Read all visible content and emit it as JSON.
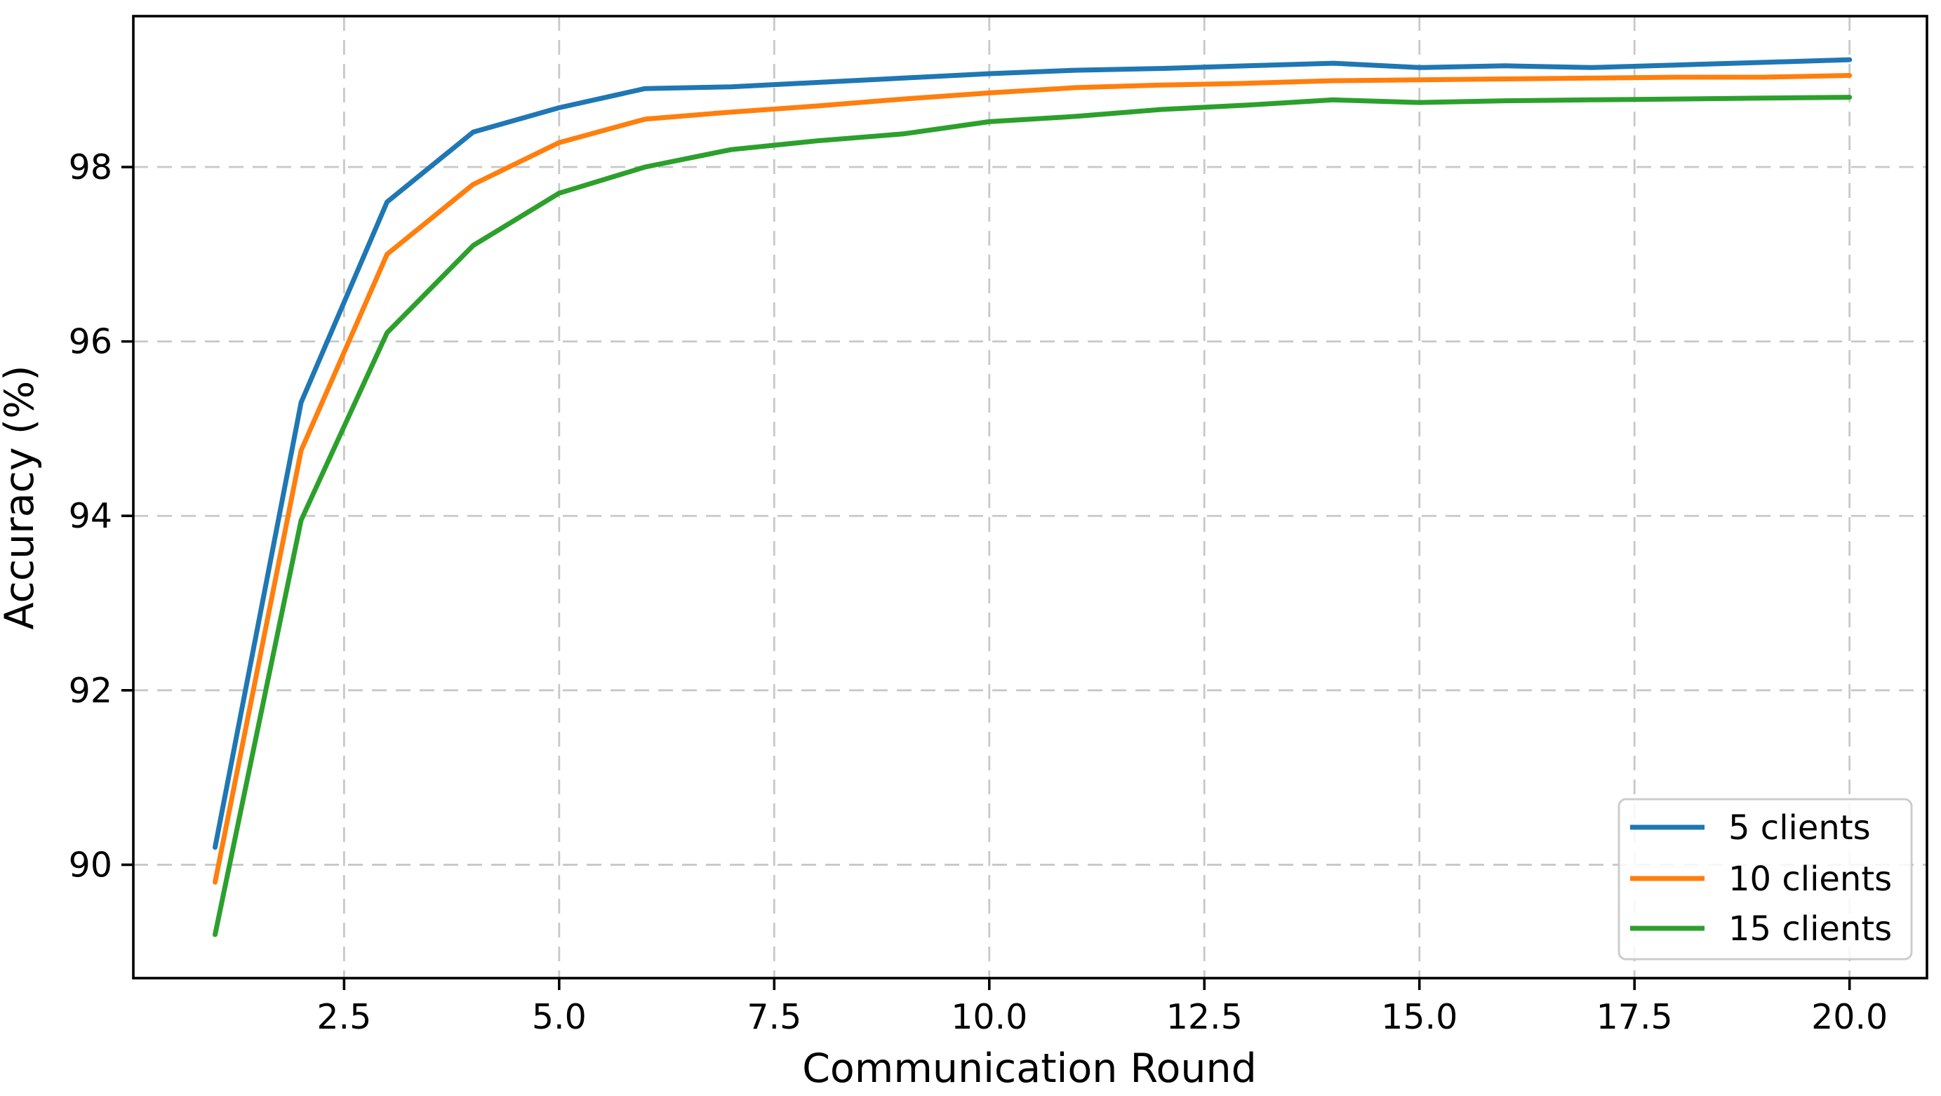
{
  "chart_data": {
    "type": "line",
    "title": "",
    "xlabel": "Communication Round",
    "ylabel": "Accuracy (%)",
    "x": [
      1,
      2,
      3,
      4,
      5,
      6,
      7,
      8,
      9,
      10,
      11,
      12,
      13,
      14,
      15,
      16,
      17,
      18,
      19,
      20
    ],
    "series": [
      {
        "name": "5 clients",
        "color": "#1f77b4",
        "values": [
          90.2,
          95.3,
          97.6,
          98.4,
          98.68,
          98.9,
          98.92,
          98.97,
          99.02,
          99.07,
          99.11,
          99.13,
          99.16,
          99.19,
          99.14,
          99.16,
          99.14,
          99.17,
          99.2,
          99.23
        ]
      },
      {
        "name": "10 clients",
        "color": "#ff7f0e",
        "values": [
          89.8,
          94.75,
          97.0,
          97.8,
          98.28,
          98.55,
          98.63,
          98.7,
          98.78,
          98.85,
          98.91,
          98.94,
          98.96,
          98.99,
          99.0,
          99.01,
          99.02,
          99.03,
          99.03,
          99.05
        ]
      },
      {
        "name": "15 clients",
        "color": "#2ca02c",
        "values": [
          89.2,
          93.95,
          96.1,
          97.1,
          97.7,
          98.0,
          98.2,
          98.3,
          98.38,
          98.52,
          98.58,
          98.66,
          98.71,
          98.77,
          98.74,
          98.76,
          98.77,
          98.78,
          98.79,
          98.8
        ]
      }
    ],
    "xticks": {
      "values": [
        2.5,
        5.0,
        7.5,
        10.0,
        12.5,
        15.0,
        17.5,
        20.0
      ],
      "labels": [
        "2.5",
        "5.0",
        "7.5",
        "10.0",
        "12.5",
        "15.0",
        "17.5",
        "20.0"
      ]
    },
    "yticks": {
      "values": [
        90,
        92,
        94,
        96,
        98
      ],
      "labels": [
        "90",
        "92",
        "94",
        "96",
        "98"
      ]
    },
    "xlim": [
      0.05,
      20.9
    ],
    "ylim": [
      88.7,
      99.73
    ],
    "grid": {
      "visible": true,
      "style": "dashed",
      "color": "#c8c8c8"
    },
    "legend": {
      "position": "lower right",
      "labels": [
        "5 clients",
        "10 clients",
        "15 clients"
      ]
    }
  },
  "styles": {
    "background": "#ffffff",
    "axis_color": "#000000",
    "grid_color": "#c8c8c8",
    "legend_border_color": "#cccccc",
    "legend_fill": "#ffffff"
  }
}
